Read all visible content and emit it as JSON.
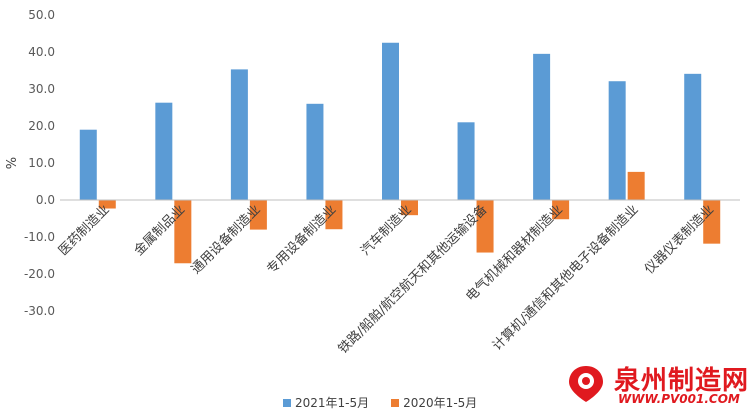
{
  "chart_data": {
    "type": "bar",
    "categories": [
      "医药制造业",
      "金属制品业",
      "通用设备制造业",
      "专用设备制造业",
      "汽车制造业",
      "铁路/船舶/航空航天和其他运输设备",
      "电气机械和器材制造业",
      "计算机/通信和其他电子设备制造业",
      "仪器仪表制造业"
    ],
    "series": [
      {
        "name": "2021年1-5月",
        "color": "#5b9bd5",
        "values": [
          19.0,
          26.3,
          35.3,
          26.0,
          42.5,
          21.0,
          39.5,
          32.1,
          34.1
        ]
      },
      {
        "name": "2020年1-5月",
        "color": "#ed7d31",
        "values": [
          -2.3,
          -17.1,
          -8.0,
          -7.9,
          -4.1,
          -14.2,
          -5.2,
          7.6,
          -11.8
        ]
      }
    ],
    "ylabel": "%",
    "ylim": [
      -30,
      50
    ],
    "yticks": [
      "50.0",
      "40.0",
      "30.0",
      "20.0",
      "10.0",
      "0.0",
      "-10.0",
      "-20.0",
      "-30.0"
    ],
    "grid": false,
    "legend_position": "bottom"
  },
  "watermark": {
    "text": "泉州制造网",
    "url": "WWW.PV001.COM",
    "color": "#e0191f"
  }
}
